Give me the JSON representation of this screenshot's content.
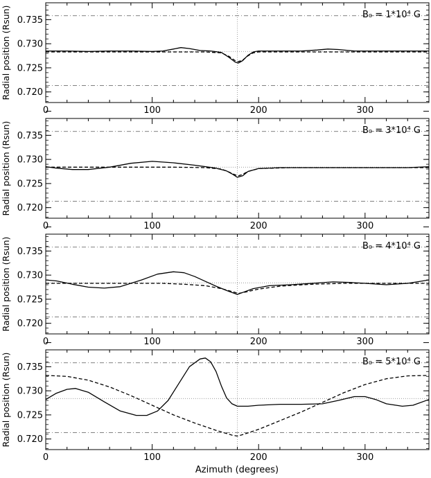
{
  "chart_data": [
    {
      "type": "line",
      "annotation": "B₀ = 1*10⁴ G",
      "ylabel": "Radial position (Rsun)",
      "xlim": [
        0,
        360
      ],
      "ylim": [
        0.7178,
        0.7385
      ],
      "xticks": [
        "0",
        "100",
        "200",
        "300"
      ],
      "yticks": [
        "0.720",
        "0.725",
        "0.730",
        "0.735"
      ],
      "reference_lines": {
        "dash_dot": [
          0.7213,
          0.7358
        ],
        "dotted_h": [
          0.7284
        ],
        "dotted_v": [
          180
        ]
      },
      "series": [
        {
          "style": "solid",
          "x": [
            0,
            20,
            40,
            60,
            80,
            100,
            110,
            120,
            127,
            135,
            145,
            155,
            165,
            172,
            178,
            181,
            185,
            190,
            195,
            200,
            210,
            225,
            240,
            255,
            265,
            275,
            290,
            310,
            330,
            350,
            360
          ],
          "y": [
            0.7285,
            0.7285,
            0.7284,
            0.7285,
            0.7285,
            0.7284,
            0.7285,
            0.7289,
            0.7292,
            0.729,
            0.7286,
            0.7285,
            0.7282,
            0.7272,
            0.7262,
            0.726,
            0.7265,
            0.7276,
            0.7283,
            0.7285,
            0.7285,
            0.7285,
            0.7285,
            0.7287,
            0.7289,
            0.7288,
            0.7285,
            0.7285,
            0.7285,
            0.7285,
            0.7285
          ]
        },
        {
          "style": "dashed",
          "x": [
            0,
            40,
            80,
            120,
            150,
            165,
            172,
            178,
            181,
            185,
            190,
            195,
            200,
            230,
            260,
            300,
            340,
            360
          ],
          "y": [
            0.7283,
            0.7283,
            0.7283,
            0.7283,
            0.7283,
            0.7281,
            0.7274,
            0.7265,
            0.7263,
            0.7266,
            0.7275,
            0.7281,
            0.7283,
            0.7283,
            0.7283,
            0.7283,
            0.7283,
            0.7283
          ]
        }
      ]
    },
    {
      "type": "line",
      "annotation": "B₀ = 3*10⁴ G",
      "ylabel": "Radial position (Rsun)",
      "xlim": [
        0,
        360
      ],
      "ylim": [
        0.7178,
        0.7385
      ],
      "xticks": [
        "0",
        "100",
        "200",
        "300"
      ],
      "yticks": [
        "0.720",
        "0.725",
        "0.730",
        "0.735"
      ],
      "reference_lines": {
        "dash_dot": [
          0.7213,
          0.7358
        ],
        "dotted_h": [
          0.7284
        ],
        "dotted_v": [
          180
        ]
      },
      "series": [
        {
          "style": "solid",
          "x": [
            0,
            10,
            25,
            40,
            60,
            80,
            100,
            120,
            140,
            160,
            170,
            175,
            180,
            185,
            190,
            200,
            220,
            240,
            260,
            280,
            300,
            320,
            340,
            360
          ],
          "y": [
            0.7285,
            0.7282,
            0.7279,
            0.7279,
            0.7284,
            0.7292,
            0.7296,
            0.7293,
            0.7288,
            0.7282,
            0.7276,
            0.727,
            0.7263,
            0.7266,
            0.7275,
            0.7281,
            0.7283,
            0.7283,
            0.7283,
            0.7283,
            0.7283,
            0.7283,
            0.7283,
            0.7285
          ]
        },
        {
          "style": "dashed",
          "x": [
            0,
            40,
            80,
            120,
            150,
            165,
            172,
            178,
            181,
            185,
            190,
            200,
            230,
            260,
            300,
            340,
            360
          ],
          "y": [
            0.7284,
            0.7284,
            0.7284,
            0.7284,
            0.7283,
            0.728,
            0.7274,
            0.7268,
            0.7266,
            0.7269,
            0.7275,
            0.7281,
            0.7283,
            0.7283,
            0.7283,
            0.7283,
            0.7283
          ]
        }
      ]
    },
    {
      "type": "line",
      "annotation": "B₀ = 4*10⁴ G",
      "ylabel": "Radial position (Rsun)",
      "xlim": [
        0,
        360
      ],
      "ylim": [
        0.7178,
        0.7385
      ],
      "xticks": [
        "0",
        "100",
        "200",
        "300"
      ],
      "yticks": [
        "0.720",
        "0.725",
        "0.730",
        "0.735"
      ],
      "reference_lines": {
        "dash_dot": [
          0.7213,
          0.7358
        ],
        "dotted_h": [
          0.7284
        ],
        "dotted_v": [
          180
        ]
      },
      "series": [
        {
          "style": "solid",
          "x": [
            0,
            10,
            25,
            40,
            55,
            70,
            90,
            105,
            120,
            130,
            140,
            150,
            160,
            170,
            180,
            185,
            195,
            210,
            230,
            250,
            270,
            285,
            300,
            320,
            340,
            360
          ],
          "y": [
            0.729,
            0.7288,
            0.7281,
            0.7275,
            0.7273,
            0.7276,
            0.729,
            0.7302,
            0.7307,
            0.7305,
            0.7297,
            0.7287,
            0.7277,
            0.7268,
            0.726,
            0.7264,
            0.7272,
            0.7278,
            0.728,
            0.7283,
            0.7286,
            0.7285,
            0.7283,
            0.728,
            0.7283,
            0.729
          ]
        },
        {
          "style": "dashed",
          "x": [
            0,
            30,
            60,
            90,
            110,
            130,
            150,
            165,
            175,
            181,
            188,
            200,
            220,
            250,
            280,
            310,
            340,
            360
          ],
          "y": [
            0.7283,
            0.7283,
            0.7283,
            0.7283,
            0.7283,
            0.7281,
            0.7278,
            0.7272,
            0.7266,
            0.7262,
            0.7265,
            0.7271,
            0.7277,
            0.7281,
            0.7283,
            0.7283,
            0.7283,
            0.7283
          ]
        }
      ]
    },
    {
      "type": "line",
      "annotation": "B₀ = 5*10⁴ G",
      "ylabel": "Radial position (Rsun)",
      "xlabel": "Azimuth (degrees)",
      "xlim": [
        0,
        360
      ],
      "ylim": [
        0.7178,
        0.7385
      ],
      "xticks": [
        "0",
        "100",
        "200",
        "300"
      ],
      "yticks": [
        "0.720",
        "0.725",
        "0.730",
        "0.735"
      ],
      "reference_lines": {
        "dash_dot": [
          0.7213,
          0.7358
        ],
        "dotted_h": [
          0.7284
        ],
        "dotted_v": [
          180
        ]
      },
      "series": [
        {
          "style": "solid",
          "x": [
            0,
            10,
            20,
            28,
            40,
            55,
            70,
            85,
            95,
            105,
            115,
            125,
            135,
            145,
            150,
            155,
            160,
            165,
            170,
            175,
            180,
            190,
            200,
            220,
            240,
            260,
            275,
            290,
            300,
            310,
            320,
            335,
            345,
            360
          ],
          "y": [
            0.7282,
            0.7295,
            0.7303,
            0.7305,
            0.7297,
            0.7277,
            0.7258,
            0.7249,
            0.7249,
            0.7258,
            0.728,
            0.7315,
            0.735,
            0.7366,
            0.7368,
            0.736,
            0.734,
            0.731,
            0.7285,
            0.7273,
            0.7268,
            0.7268,
            0.727,
            0.7272,
            0.7272,
            0.7273,
            0.728,
            0.7288,
            0.7288,
            0.7282,
            0.7273,
            0.7268,
            0.727,
            0.7282
          ]
        },
        {
          "style": "dashed",
          "x": [
            0,
            20,
            40,
            60,
            80,
            100,
            120,
            140,
            160,
            175,
            180,
            185,
            200,
            220,
            240,
            260,
            280,
            300,
            320,
            340,
            360
          ],
          "y": [
            0.7332,
            0.733,
            0.7322,
            0.7308,
            0.729,
            0.727,
            0.725,
            0.7233,
            0.7218,
            0.7208,
            0.7206,
            0.7209,
            0.722,
            0.7238,
            0.7256,
            0.7276,
            0.7296,
            0.7313,
            0.7325,
            0.7331,
            0.7332
          ]
        }
      ]
    }
  ]
}
